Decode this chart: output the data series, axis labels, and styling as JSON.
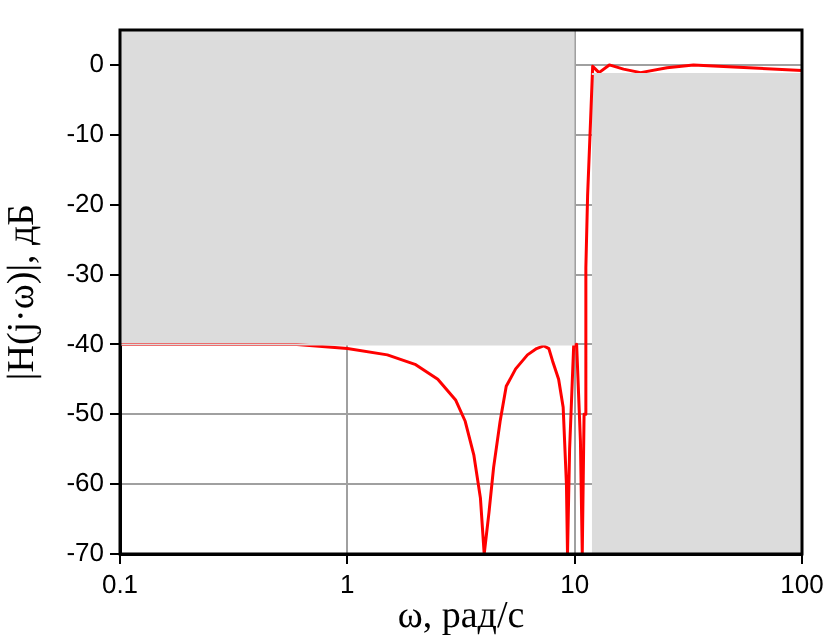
{
  "chart_data": {
    "type": "line",
    "xlabel": "ω, рад/с",
    "ylabel": "|H(j·ω)|, дБ",
    "log": "x",
    "xlim": [
      0.1,
      100
    ],
    "xticks": [
      0.1,
      1,
      10,
      100
    ],
    "ylim": [
      -70,
      5
    ],
    "yticks": [
      -70,
      -60,
      -50,
      -40,
      -30,
      -20,
      -10,
      0
    ],
    "grid": true,
    "legend": false,
    "marker": "none",
    "line_style": "solid",
    "series": [
      {
        "type": "line",
        "color": "#dcdcdc",
        "x": [
          0.1,
          10
        ],
        "values": [
          -40,
          -40
        ],
        "lower": [
          -40,
          -40
        ],
        "upper": [
          5,
          5
        ]
      },
      {
        "type": "line",
        "color": "#dcdcdc",
        "x": [
          11.9,
          100
        ],
        "values": [
          -1.3,
          -1.3
        ],
        "lower": [
          -70,
          -70
        ],
        "upper": [
          -1.3,
          -1.3
        ]
      },
      {
        "type": "line",
        "color": "#ff0000",
        "x": [
          0.1,
          0.3,
          0.6,
          1,
          1.5,
          2,
          2.5,
          3,
          3.3,
          3.6,
          3.85,
          4.0,
          4.2,
          4.4,
          4.7,
          5.0,
          5.5,
          6.2,
          6.8,
          7.3,
          7.7,
          8.0,
          8.5,
          8.9,
          9.2,
          9.3,
          9.5,
          9.9,
          10.2,
          10.6,
          10.8,
          11.0,
          11.2,
          11.4,
          11.7,
          12.0,
          12.8,
          14.2,
          16.4,
          19.5,
          25.5,
          33.3,
          50,
          100
        ],
        "values": [
          -40,
          -40,
          -40,
          -40.6,
          -41.5,
          -42.9,
          -45,
          -48,
          -51,
          -55.8,
          -62,
          -70,
          -64,
          -57.6,
          -51,
          -46,
          -43.5,
          -41.5,
          -40.6,
          -40.2,
          -40.6,
          -42.4,
          -45,
          -49,
          -60,
          -70,
          -55,
          -40.2,
          -40,
          -53.8,
          -70,
          -50,
          -29,
          -18.7,
          -9.4,
          -0.2,
          -1.1,
          0,
          -0.6,
          -1.1,
          -0.4,
          0,
          -0.3,
          -0.8
        ]
      }
    ]
  }
}
